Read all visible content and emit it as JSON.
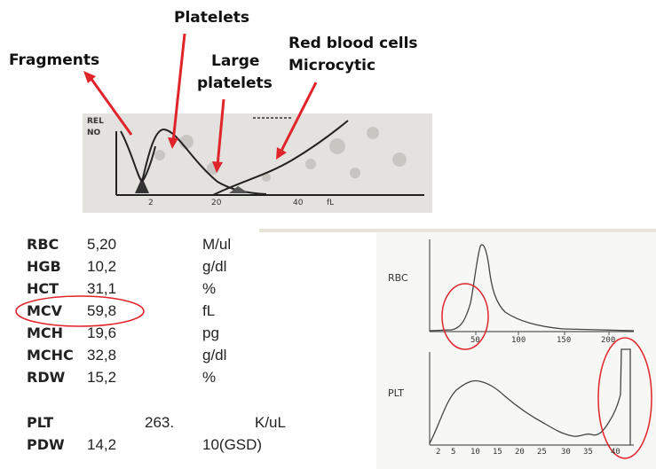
{
  "top_labels": {
    "fragments": "Fragments",
    "platelets": "Platelets",
    "large_platelets_line1": "Large",
    "large_platelets_line2": "platelets",
    "rbc_micro_line1": "Red blood cells",
    "rbc_micro_line2": "Microcytic"
  },
  "top_histogram": {
    "axis_label_top": "REL",
    "axis_label_bottom": "NO",
    "x_ticks": [
      "2",
      "20",
      "40",
      "fL"
    ]
  },
  "results": [
    {
      "name": "RBC",
      "value": "5,20",
      "unit": "M/ul"
    },
    {
      "name": "HGB",
      "value": "10,2",
      "unit": "g/dl"
    },
    {
      "name": "HCT",
      "value": "31,1",
      "unit": "%"
    },
    {
      "name": "MCV",
      "value": "59,8",
      "unit": "fL"
    },
    {
      "name": "MCH",
      "value": "19,6",
      "unit": "pg"
    },
    {
      "name": "MCHC",
      "value": "32,8",
      "unit": "g/dl"
    },
    {
      "name": "RDW",
      "value": "15,2",
      "unit": "%"
    }
  ],
  "plt": {
    "name": "PLT",
    "value": "263.",
    "unit": "K/uL"
  },
  "pdw": {
    "name": "PDW",
    "value": "14,2",
    "unit": "10(GSD)"
  },
  "right_histograms": {
    "rbc_label": "RBC",
    "plt_label": "PLT",
    "rbc_ticks": [
      "50",
      "100",
      "150",
      "200"
    ],
    "plt_ticks": [
      "2",
      "5",
      "10",
      "15",
      "20",
      "25",
      "30",
      "35",
      "40"
    ]
  },
  "colors": {
    "annotation_red": "#e0242a"
  }
}
